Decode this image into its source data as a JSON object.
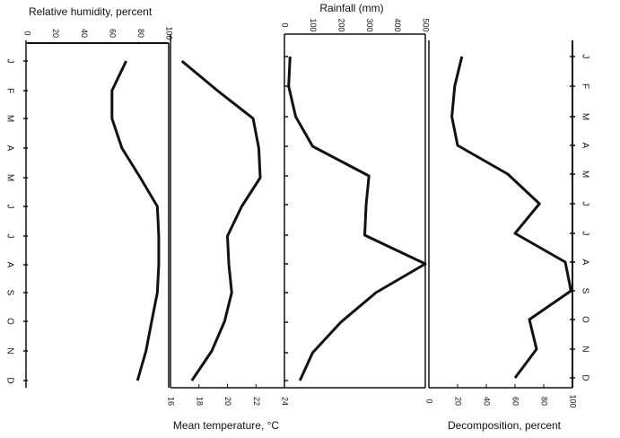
{
  "months": [
    "J",
    "F",
    "M",
    "A",
    "M",
    "J",
    "J",
    "A",
    "S",
    "O",
    "N",
    "D"
  ],
  "chart_data": [
    {
      "type": "line",
      "title": "Relative humidity, percent",
      "xlabel": "Relative humidity, percent",
      "xlim": [
        0,
        100
      ],
      "ticks": [
        "0",
        "20",
        "40",
        "60",
        "80",
        "100"
      ],
      "tick_values": [
        0,
        20,
        40,
        60,
        80,
        100
      ],
      "categories": [
        "J",
        "F",
        "M",
        "A",
        "M",
        "J",
        "J",
        "A",
        "S",
        "O",
        "N",
        "D"
      ],
      "values": [
        70,
        60,
        60,
        67,
        80,
        92,
        93,
        93,
        92,
        88,
        84,
        78
      ],
      "axis_position": "top"
    },
    {
      "type": "line",
      "xlabel": "Mean temperature, °C",
      "xlim": [
        16,
        24
      ],
      "ticks": [
        "16",
        "18",
        "20",
        "22",
        "24"
      ],
      "tick_values": [
        16,
        18,
        20,
        22,
        24
      ],
      "categories": [
        "J",
        "F",
        "M",
        "A",
        "M",
        "J",
        "J",
        "A",
        "S",
        "O",
        "N",
        "D"
      ],
      "values": [
        16.8,
        19.3,
        21.8,
        22.2,
        22.3,
        21.0,
        20.0,
        20.1,
        20.3,
        19.8,
        18.9,
        17.5
      ],
      "axis_position": "bottom"
    },
    {
      "type": "line",
      "title": "Rainfall (mm)",
      "xlabel": "Rainfall (mm)",
      "xlim": [
        0,
        500
      ],
      "ticks": [
        "0",
        "100",
        "200",
        "300",
        "400",
        "500"
      ],
      "tick_values": [
        0,
        100,
        200,
        300,
        400,
        500
      ],
      "categories": [
        "J",
        "F",
        "M",
        "A",
        "M",
        "J",
        "J",
        "A",
        "S",
        "O",
        "N",
        "D"
      ],
      "values": [
        20,
        15,
        40,
        100,
        300,
        290,
        285,
        500,
        325,
        200,
        100,
        55
      ],
      "axis_position": "top"
    },
    {
      "type": "line",
      "xlabel": "Decomposition, percent",
      "xlim": [
        0,
        100
      ],
      "ticks": [
        "0",
        "20",
        "40",
        "60",
        "80",
        "100"
      ],
      "tick_values": [
        0,
        20,
        40,
        60,
        80,
        100
      ],
      "categories": [
        "J",
        "F",
        "M",
        "A",
        "M",
        "J",
        "J",
        "A",
        "S",
        "O",
        "N",
        "D"
      ],
      "values": [
        23,
        18,
        16,
        20,
        55,
        77,
        60,
        95,
        99,
        70,
        75,
        60
      ],
      "axis_position": "bottom"
    }
  ]
}
